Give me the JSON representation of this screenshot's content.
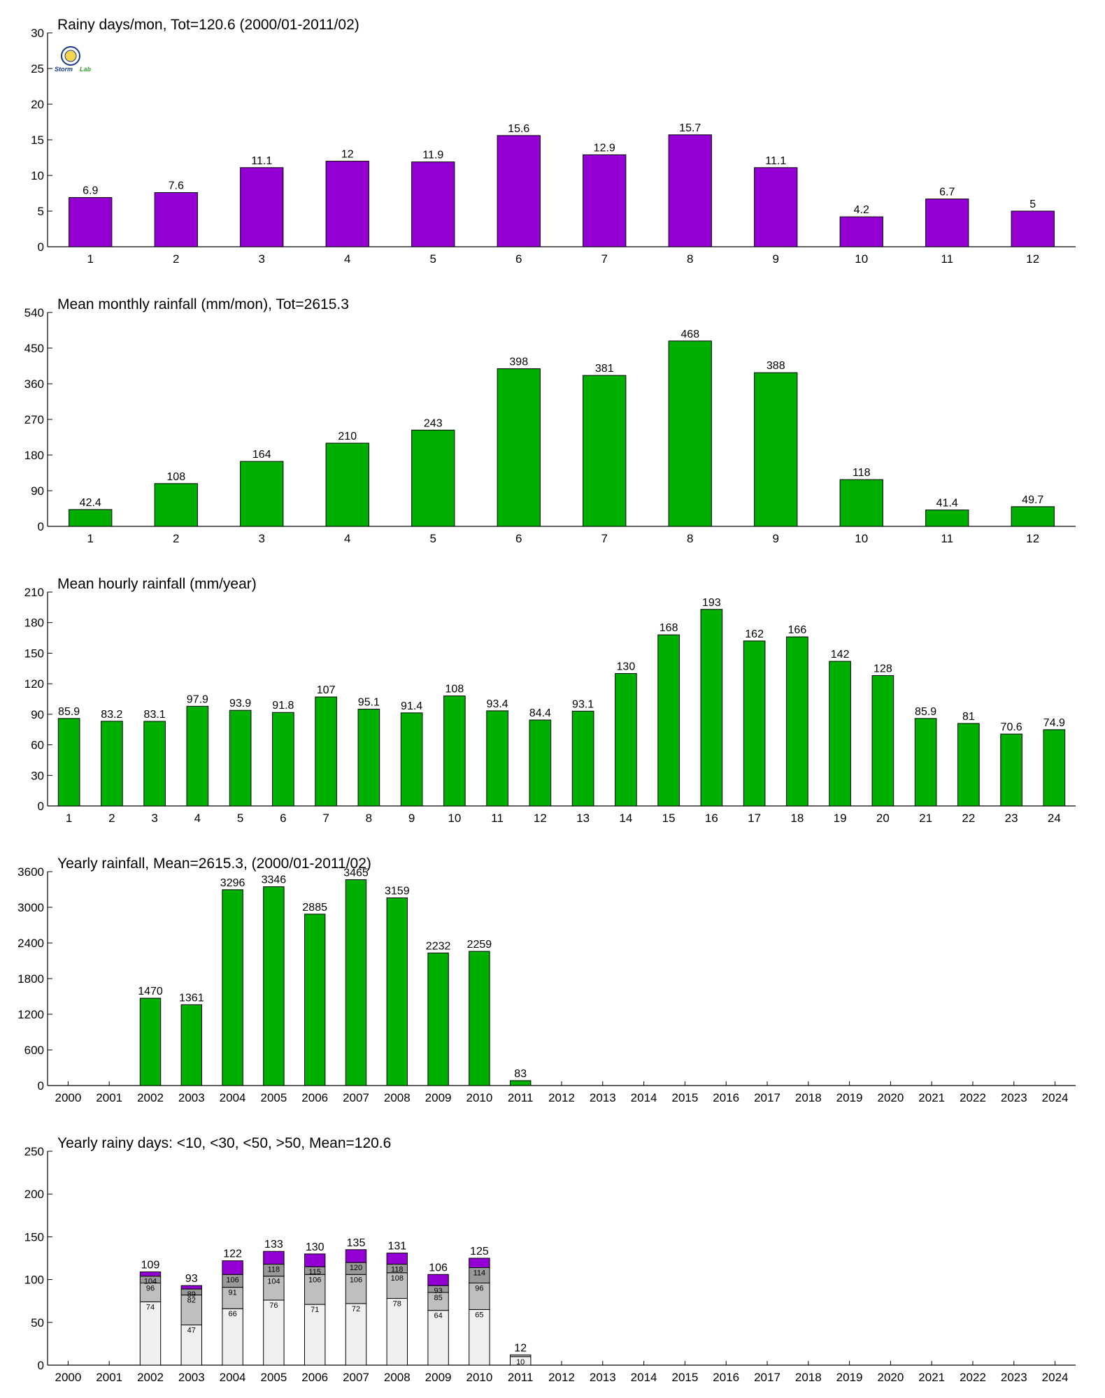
{
  "colors": {
    "purple": "#9400d3",
    "green": "#00b000",
    "light_gray": "#f0f0f0",
    "mid_gray": "#bfbfbf",
    "dark_gray": "#999999"
  },
  "logo": {
    "text": "Storm Lab",
    "icon": "seal-logo-icon"
  },
  "chart_data": [
    {
      "type": "bar",
      "title": "Rainy days/mon, Tot=120.6 (2000/01-2011/02)",
      "categories": [
        "1",
        "2",
        "3",
        "4",
        "5",
        "6",
        "7",
        "8",
        "9",
        "10",
        "11",
        "12"
      ],
      "values": [
        6.9,
        7.6,
        11.1,
        12,
        11.9,
        15.6,
        12.9,
        15.7,
        11.1,
        4.2,
        6.7,
        5
      ],
      "labels": [
        "6.9",
        "7.6",
        "11.1",
        "12",
        "11.9",
        "15.6",
        "12.9",
        "15.7",
        "11.1",
        "4.2",
        "6.7",
        "5"
      ],
      "ylim": [
        0,
        30
      ],
      "yticks": [
        0,
        5,
        10,
        15,
        20,
        25,
        30
      ],
      "color": "#9400d3"
    },
    {
      "type": "bar",
      "title": "Mean monthly rainfall (mm/mon), Tot=2615.3",
      "categories": [
        "1",
        "2",
        "3",
        "4",
        "5",
        "6",
        "7",
        "8",
        "9",
        "10",
        "11",
        "12"
      ],
      "values": [
        42.4,
        108,
        164,
        210,
        243,
        398,
        381,
        468,
        388,
        118,
        41.4,
        49.7
      ],
      "labels": [
        "42.4",
        "108",
        "164",
        "210",
        "243",
        "398",
        "381",
        "468",
        "388",
        "118",
        "41.4",
        "49.7"
      ],
      "ylim": [
        0,
        540
      ],
      "yticks": [
        0,
        90,
        180,
        270,
        360,
        450,
        540
      ],
      "color": "#00b000"
    },
    {
      "type": "bar",
      "title": "Mean hourly rainfall (mm/year)",
      "categories": [
        "1",
        "2",
        "3",
        "4",
        "5",
        "6",
        "7",
        "8",
        "9",
        "10",
        "11",
        "12",
        "13",
        "14",
        "15",
        "16",
        "17",
        "18",
        "19",
        "20",
        "21",
        "22",
        "23",
        "24"
      ],
      "values": [
        85.9,
        83.2,
        83.1,
        97.9,
        93.9,
        91.8,
        107,
        95.1,
        91.4,
        108,
        93.4,
        84.4,
        93.1,
        130,
        168,
        193,
        162,
        166,
        142,
        128,
        85.9,
        81,
        70.6,
        74.9
      ],
      "labels": [
        "85.9",
        "83.2",
        "83.1",
        "97.9",
        "93.9",
        "91.8",
        "107",
        "95.1",
        "91.4",
        "108",
        "93.4",
        "84.4",
        "93.1",
        "130",
        "168",
        "193",
        "162",
        "166",
        "142",
        "128",
        "85.9",
        "81",
        "70.6",
        "74.9"
      ],
      "ylim": [
        0,
        210
      ],
      "yticks": [
        0,
        30,
        60,
        90,
        120,
        150,
        180,
        210
      ],
      "color": "#00b000"
    },
    {
      "type": "bar",
      "title": "Yearly rainfall, Mean=2615.3, (2000/01-2011/02)",
      "categories": [
        "2000",
        "2001",
        "2002",
        "2003",
        "2004",
        "2005",
        "2006",
        "2007",
        "2008",
        "2009",
        "2010",
        "2011",
        "2012",
        "2013",
        "2014",
        "2015",
        "2016",
        "2017",
        "2018",
        "2019",
        "2020",
        "2021",
        "2022",
        "2023",
        "2024"
      ],
      "values": [
        null,
        null,
        1470,
        1361,
        3296,
        3346,
        2885,
        3465,
        3159,
        2232,
        2259,
        83,
        null,
        null,
        null,
        null,
        null,
        null,
        null,
        null,
        null,
        null,
        null,
        null,
        null
      ],
      "labels": [
        "",
        "",
        "1470",
        "1361",
        "3296",
        "3346",
        "2885",
        "3465",
        "3159",
        "2232",
        "2259",
        "83",
        "",
        "",
        "",
        "",
        "",
        "",
        "",
        "",
        "",
        "",
        "",
        "",
        ""
      ],
      "ylim": [
        0,
        3600
      ],
      "yticks": [
        0,
        600,
        1200,
        1800,
        2400,
        3000,
        3600
      ],
      "color": "#00b000"
    },
    {
      "type": "bar",
      "stacked": true,
      "title": "Yearly rainy days: <10, <30, <50, >50, Mean=120.6",
      "categories": [
        "2000",
        "2001",
        "2002",
        "2003",
        "2004",
        "2005",
        "2006",
        "2007",
        "2008",
        "2009",
        "2010",
        "2011",
        "2012",
        "2013",
        "2014",
        "2015",
        "2016",
        "2017",
        "2018",
        "2019",
        "2020",
        "2021",
        "2022",
        "2023",
        "2024"
      ],
      "cumulative": [
        null,
        null,
        [
          74,
          96,
          104,
          109
        ],
        [
          47,
          82,
          89,
          93
        ],
        [
          66,
          91,
          106,
          122
        ],
        [
          76,
          104,
          118,
          133
        ],
        [
          71,
          106,
          115,
          130
        ],
        [
          72,
          106,
          120,
          135
        ],
        [
          78,
          108,
          118,
          131
        ],
        [
          64,
          85,
          93,
          106
        ],
        [
          65,
          96,
          114,
          125
        ],
        [
          10,
          12,
          12,
          12
        ],
        null,
        null,
        null,
        null,
        null,
        null,
        null,
        null,
        null,
        null,
        null,
        null,
        null
      ],
      "segment_labels": [
        null,
        null,
        [
          "74",
          "96",
          "104"
        ],
        [
          "47",
          "82",
          "89"
        ],
        [
          "66",
          "91",
          "106"
        ],
        [
          "76",
          "104",
          "118"
        ],
        [
          "71",
          "106",
          "115"
        ],
        [
          "72",
          "106",
          "120"
        ],
        [
          "78",
          "108",
          "118"
        ],
        [
          "64",
          "85",
          "93"
        ],
        [
          "65",
          "96",
          "114"
        ],
        [
          "10",
          "",
          ""
        ],
        null,
        null,
        null,
        null,
        null,
        null,
        null,
        null,
        null,
        null,
        null,
        null,
        null
      ],
      "total_labels": [
        "",
        "",
        "109",
        "93",
        "122",
        "133",
        "130",
        "135",
        "131",
        "106",
        "125",
        "12",
        "",
        "",
        "",
        "",
        "",
        "",
        "",
        "",
        "",
        "",
        "",
        "",
        ""
      ],
      "ylim": [
        0,
        250
      ],
      "yticks": [
        0,
        50,
        100,
        150,
        200,
        250
      ],
      "segment_colors": [
        "#f0f0f0",
        "#bfbfbf",
        "#999999",
        "#9400d3"
      ]
    }
  ]
}
